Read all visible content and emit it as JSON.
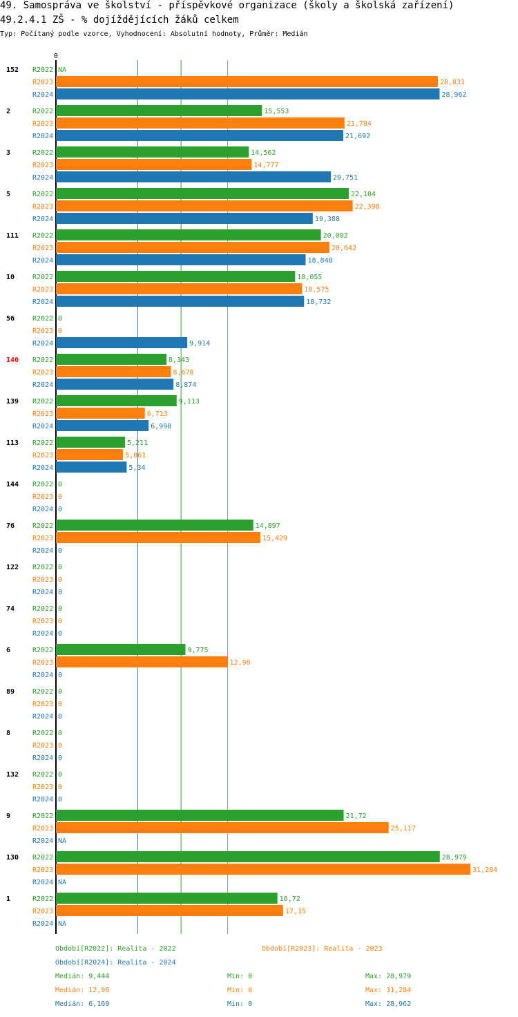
{
  "title": "49. Samospráva ve školství - příspěvkové organizace (školy a školská zařízení)",
  "subtitle": "49.2.4.1 ZŠ - % dojíždějících žáků celkem",
  "info": "Typ: Počítaný podle vzorce, Vyhodnocení: Absolutní hodnoty, Průměr: Medián",
  "colors": {
    "R2022": "#2ca02c",
    "R2023": "#ff7f0e",
    "R2024": "#1f77b4",
    "highlight": "#ff0000",
    "axis": "#000000"
  },
  "chart_data": {
    "type": "bar",
    "orientation": "horizontal",
    "axis_zero_label": "0",
    "xlim": [
      0,
      31.284
    ],
    "series_names": [
      "R2022",
      "R2023",
      "R2024"
    ],
    "highlighted_group": "140",
    "groups": [
      {
        "label": "152",
        "values": [
          null,
          28.831,
          28.962
        ],
        "labels": [
          "NA",
          "28,831",
          "28,962"
        ]
      },
      {
        "label": "2",
        "values": [
          15.553,
          21.784,
          21.692
        ],
        "labels": [
          "15,553",
          "21,784",
          "21,692"
        ]
      },
      {
        "label": "3",
        "values": [
          14.562,
          14.777,
          20.751
        ],
        "labels": [
          "14,562",
          "14,777",
          "20,751"
        ]
      },
      {
        "label": "5",
        "values": [
          22.104,
          22.398,
          19.388
        ],
        "labels": [
          "22,104",
          "22,398",
          "19,388"
        ]
      },
      {
        "label": "111",
        "values": [
          20.002,
          20.642,
          18.848
        ],
        "labels": [
          "20,002",
          "20,642",
          "18,848"
        ]
      },
      {
        "label": "10",
        "values": [
          18.055,
          18.575,
          18.732
        ],
        "labels": [
          "18,055",
          "18,575",
          "18,732"
        ]
      },
      {
        "label": "56",
        "values": [
          0,
          0,
          9.914
        ],
        "labels": [
          "0",
          "0",
          "9,914"
        ]
      },
      {
        "label": "140",
        "values": [
          8.343,
          8.678,
          8.874
        ],
        "labels": [
          "8,343",
          "8,678",
          "8,874"
        ]
      },
      {
        "label": "139",
        "values": [
          9.113,
          6.713,
          6.998
        ],
        "labels": [
          "9,113",
          "6,713",
          "6,998"
        ]
      },
      {
        "label": "113",
        "values": [
          5.211,
          5.061,
          5.34
        ],
        "labels": [
          "5,211",
          "5,061",
          "5,34"
        ]
      },
      {
        "label": "144",
        "values": [
          0,
          0,
          0
        ],
        "labels": [
          "0",
          "0",
          "0"
        ]
      },
      {
        "label": "76",
        "values": [
          14.897,
          15.429,
          0
        ],
        "labels": [
          "14,897",
          "15,429",
          "0"
        ]
      },
      {
        "label": "122",
        "values": [
          0,
          0,
          0
        ],
        "labels": [
          "0",
          "0",
          "0"
        ]
      },
      {
        "label": "74",
        "values": [
          0,
          0,
          0
        ],
        "labels": [
          "0",
          "0",
          "0"
        ]
      },
      {
        "label": "6",
        "values": [
          9.775,
          12.96,
          0
        ],
        "labels": [
          "9,775",
          "12,96",
          "0"
        ]
      },
      {
        "label": "89",
        "values": [
          0,
          0,
          0
        ],
        "labels": [
          "0",
          "0",
          "0"
        ]
      },
      {
        "label": "8",
        "values": [
          0,
          0,
          0
        ],
        "labels": [
          "0",
          "0",
          "0"
        ]
      },
      {
        "label": "132",
        "values": [
          0,
          0,
          0
        ],
        "labels": [
          "0",
          "0",
          "0"
        ]
      },
      {
        "label": "9",
        "values": [
          21.72,
          25.117,
          null
        ],
        "labels": [
          "21,72",
          "25,117",
          "NA"
        ]
      },
      {
        "label": "130",
        "values": [
          28.979,
          31.284,
          null
        ],
        "labels": [
          "28,979",
          "31,284",
          "NA"
        ]
      },
      {
        "label": "1",
        "values": [
          16.72,
          17.15,
          null
        ],
        "labels": [
          "16,72",
          "17,15",
          "NA"
        ]
      }
    ],
    "reference_lines": [
      {
        "series": "R2024",
        "value": 6.169
      },
      {
        "series": "R2022",
        "value": 9.444
      },
      {
        "series": "R2023",
        "value": 12.96
      }
    ]
  },
  "legend": {
    "periods": [
      {
        "series": "R2022",
        "text": "Období[R2022]: Realita - 2022"
      },
      {
        "series": "R2023",
        "text": "Období[R2023]: Realita - 2023"
      },
      {
        "series": "R2024",
        "text": "Období[R2024]: Realita - 2024"
      }
    ],
    "stats": [
      {
        "series": "R2022",
        "median": "Medián: 9,444",
        "min": "Min: 0",
        "max": "Max: 28,979"
      },
      {
        "series": "R2023",
        "median": "Medián: 12,96",
        "min": "Min: 0",
        "max": "Max: 31,284"
      },
      {
        "series": "R2024",
        "median": "Medián: 6,169",
        "min": "Min: 0",
        "max": "Max: 28,962"
      }
    ]
  }
}
